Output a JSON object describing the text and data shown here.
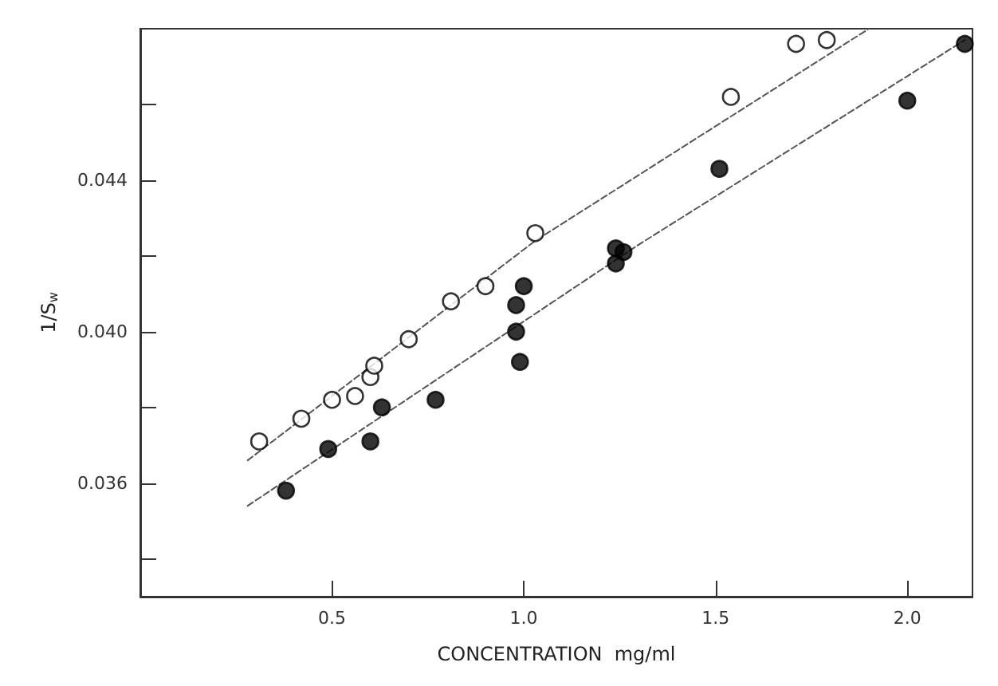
{
  "chart_data": {
    "type": "scatter",
    "xlabel": "CONCENTRATION  mg/ml",
    "ylabel": "1/S$_{w}$",
    "xlim": [
      0,
      2.17
    ],
    "ylim": [
      0.033,
      0.048
    ],
    "xticks": [
      {
        "value": 0.5,
        "label": "0.5"
      },
      {
        "value": 1,
        "label": "1.0"
      },
      {
        "value": 1.5,
        "label": "1.5"
      },
      {
        "value": 2,
        "label": "2.0"
      }
    ],
    "yticks": [
      {
        "value": 0.034,
        "label": null
      },
      0.036,
      {
        "value": 0.038,
        "label": null
      },
      {
        "value": 0.04,
        "label": "0.040"
      },
      {
        "value": 0.042,
        "label": null
      },
      0.044,
      {
        "value": 0.046,
        "label": null
      }
    ],
    "marker": "circle",
    "series": [
      {
        "color": "#ffffff",
        "x": [
          0.31,
          0.42,
          0.5,
          0.56,
          0.6,
          0.61,
          0.7,
          0.81,
          0.9,
          1.03,
          1.54,
          1.71,
          1.79
        ],
        "values": [
          0.0371,
          0.0377,
          0.0382,
          0.0383,
          0.0388,
          0.0391,
          0.0398,
          0.0408,
          0.0412,
          0.0426,
          0.0462,
          0.0476,
          0.0477
        ]
      },
      {
        "color": "#000000",
        "x": [
          0.38,
          0.49,
          0.6,
          0.63,
          0.77,
          0.98,
          0.98,
          0.99,
          1.0,
          1.24,
          1.26,
          1.24,
          1.51,
          2.0,
          2.15
        ],
        "values": [
          0.0358,
          0.0369,
          0.0371,
          0.038,
          0.0382,
          0.04,
          0.0407,
          0.0392,
          0.0412,
          0.0422,
          0.0421,
          0.0418,
          0.0443,
          0.0461,
          0.0476
        ]
      },
      {
        "type": "line",
        "color": "#555555",
        "line_style": "dashed",
        "marker": "none",
        "x": [
          0.28,
          1.03,
          1.9
        ],
        "values": [
          0.0366,
          0.0424,
          0.048
        ]
      },
      {
        "type": "line",
        "color": "#555555",
        "line_style": "dashed",
        "marker": "none",
        "x": [
          0.28,
          1.3,
          2.15
        ],
        "values": [
          0.0354,
          0.0423,
          0.0477
        ]
      }
    ]
  }
}
